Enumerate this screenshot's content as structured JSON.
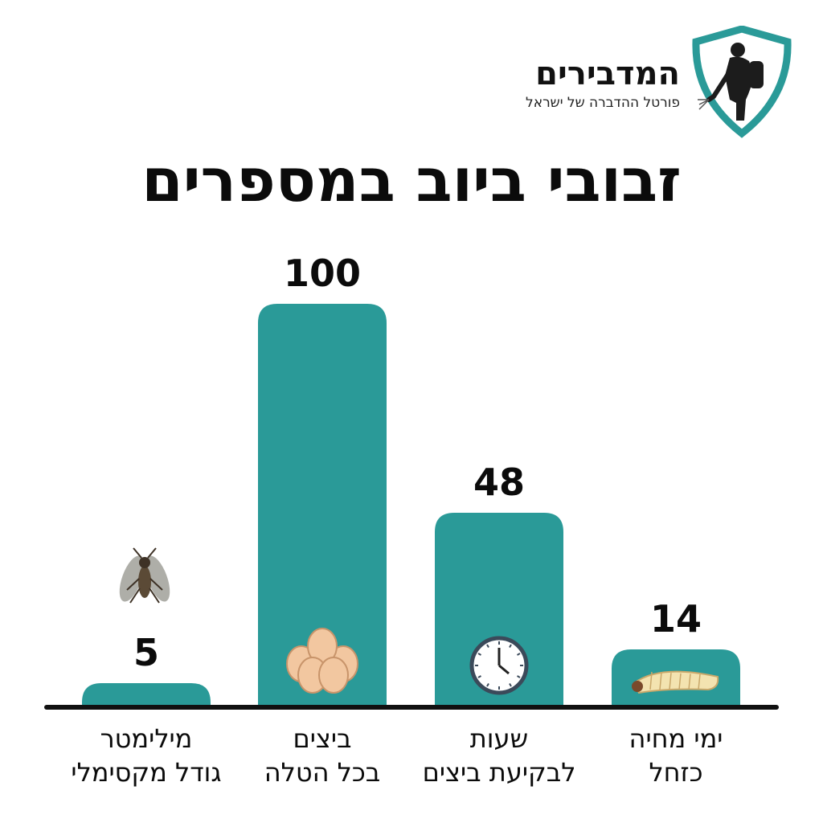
{
  "logo": {
    "name": "המדבירים",
    "tagline": "פורטל ההדברה של ישראל"
  },
  "colors": {
    "bar": "#2a9a98",
    "shield": "#2a9a98",
    "text": "#0b0b0b",
    "baseline": "#111111"
  },
  "chart_data": {
    "type": "bar",
    "title": "זבובי ביוב במספרים",
    "categories": [
      [
        "מילימטר",
        "גודל מקסימלי"
      ],
      [
        "ביצים",
        "בכל הטלה"
      ],
      [
        "שעות",
        "לבקיעת ביצים"
      ],
      [
        "ימי מחיה",
        "כזחל"
      ]
    ],
    "values": [
      5,
      100,
      48,
      14
    ],
    "data_labels": [
      "5",
      "100",
      "48",
      "14"
    ],
    "icons": [
      "fly-icon",
      "eggs-icon",
      "clock-icon",
      "larva-icon"
    ],
    "ylim": [
      0,
      100
    ],
    "grid": false,
    "legend": "none"
  }
}
